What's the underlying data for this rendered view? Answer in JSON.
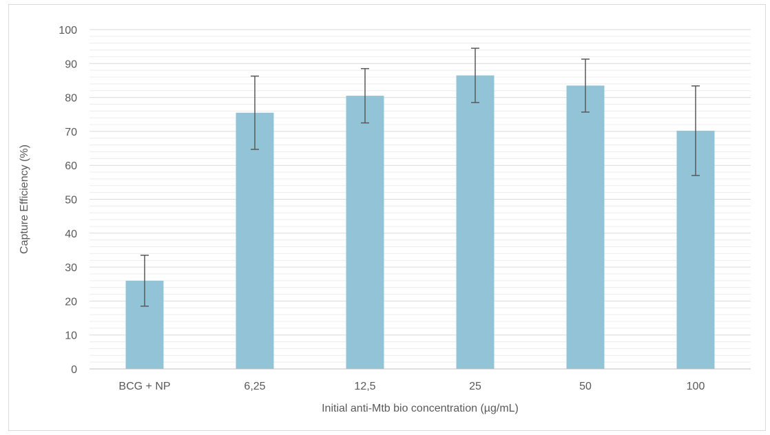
{
  "chart_data": {
    "type": "bar",
    "title": "",
    "xlabel": "Initial anti-Mtb bio concentration (µg/mL)",
    "ylabel": "Capture Efficiency (%)",
    "ylim": [
      0,
      100
    ],
    "y_ticks": [
      "0",
      "10",
      "20",
      "30",
      "40",
      "50",
      "60",
      "70",
      "80",
      "90",
      "100"
    ],
    "grid": true,
    "categories": [
      "BCG + NP",
      "6,25",
      "12,5",
      "25",
      "50",
      "100"
    ],
    "values": [
      26.0,
      75.5,
      80.5,
      86.5,
      83.5,
      70.2
    ],
    "error": [
      7.5,
      10.8,
      8.0,
      8.0,
      7.8,
      13.2
    ],
    "colors": {
      "bar": "#92c3d6",
      "error_bar": "#595959",
      "grid_major": "#d9d9d9",
      "grid_minor": "#ececec",
      "axis": "#bfbfbf"
    }
  }
}
